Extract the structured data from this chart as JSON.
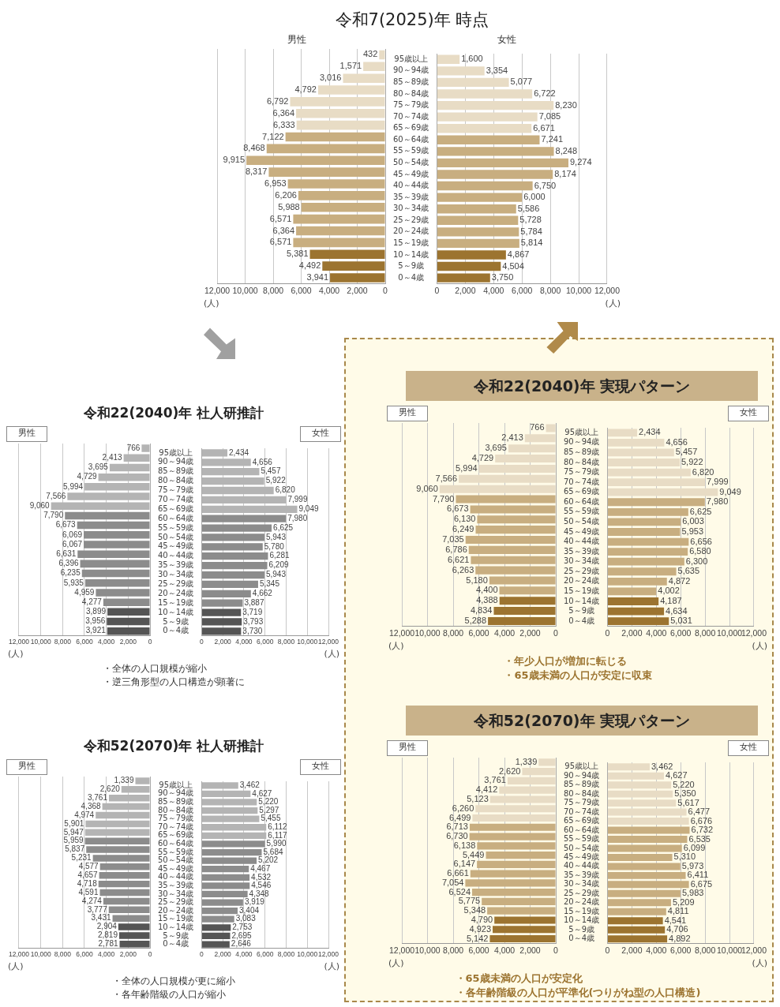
{
  "chart_data": [
    {
      "type": "bar",
      "orientation": "horizontal",
      "title": "令和7(2025)年 時点",
      "subtitle": "男性",
      "xlabel": "(人)",
      "categories": [
        null,
        null,
        null,
        null,
        null,
        null,
        null,
        null,
        null,
        null,
        null,
        null,
        null,
        null,
        null,
        null,
        null,
        null,
        null,
        null
      ],
      "values": [
        432,
        1571,
        3016,
        4792,
        6792,
        6364,
        6333,
        7122,
        8468,
        9915,
        8317,
        6953,
        6206,
        5988,
        6571,
        6364,
        6571,
        5381,
        4492,
        3941
      ],
      "value_labels": [
        "432",
        "1,571",
        "3,016",
        "4,792",
        "6,792",
        "6,364",
        "6,333",
        "7,122",
        "8,468",
        "9,915",
        "8,317",
        "6,953",
        "6,206",
        "5,988",
        "6,571",
        "6,364",
        "6,571",
        "5,381",
        "4,492",
        "3,941"
      ],
      "colors": [
        "#e8dcc5",
        "#e8dcc5",
        "#e8dcc5",
        "#e8dcc5",
        "#e8dcc5",
        "#e8dcc5",
        "#e8dcc5",
        "#c8ae80",
        "#c8ae80",
        "#c8ae80",
        "#c8ae80",
        "#c8ae80",
        "#c8ae80",
        "#c8ae80",
        "#c8ae80",
        "#c8ae80",
        "#c8ae80",
        "#9c7430",
        "#9c7430",
        "#9c7430"
      ],
      "xlim": [
        12000,
        0
      ],
      "xticks": [
        {
          "value": 12000,
          "label": "12,000"
        },
        {
          "value": 10000,
          "label": "10,000"
        },
        {
          "value": 8000,
          "label": "8,000"
        },
        {
          "value": 6000,
          "label": "6,000"
        },
        {
          "value": 4000,
          "label": "4,000"
        },
        {
          "value": 2000,
          "label": "2,000"
        },
        {
          "value": 0,
          "label": "0"
        }
      ],
      "grid": "x",
      "tick_labels": "x"
    },
    {
      "type": "bar",
      "orientation": "horizontal",
      "subtitle": "女性",
      "xlabel": "(人)",
      "categories": [
        "95歳以上",
        "90～94歳",
        "85～89歳",
        "80～84歳",
        "75～79歳",
        "70～74歳",
        "65～69歳",
        "60～64歳",
        "55～59歳",
        "50～54歳",
        "45～49歳",
        "40～44歳",
        "35～39歳",
        "30～34歳",
        "25～29歳",
        "20～24歳",
        "15～19歳",
        "10～14歳",
        "5～9歳",
        "0～4歳"
      ],
      "values": [
        1600,
        3354,
        5077,
        6722,
        8230,
        7085,
        6671,
        7241,
        8248,
        9274,
        8174,
        6750,
        6000,
        5586,
        5728,
        5784,
        5814,
        4867,
        4504,
        3750
      ],
      "value_labels": [
        "1,600",
        "3,354",
        "5,077",
        "6,722",
        "8,230",
        "7,085",
        "6,671",
        "7,241",
        "8,248",
        "9,274",
        "8,174",
        "6,750",
        "6,000",
        "5,586",
        "5,728",
        "5,784",
        "5,814",
        "4,867",
        "4,504",
        "3,750"
      ],
      "colors": [
        "#e8dcc5",
        "#e8dcc5",
        "#e8dcc5",
        "#e8dcc5",
        "#e8dcc5",
        "#e8dcc5",
        "#e8dcc5",
        "#c8ae80",
        "#c8ae80",
        "#c8ae80",
        "#c8ae80",
        "#c8ae80",
        "#c8ae80",
        "#c8ae80",
        "#c8ae80",
        "#c8ae80",
        "#c8ae80",
        "#9c7430",
        "#9c7430",
        "#9c7430"
      ],
      "xlim": [
        0,
        12000
      ],
      "xticks": [
        {
          "value": 0,
          "label": "0"
        },
        {
          "value": 2000,
          "label": "2,000"
        },
        {
          "value": 4000,
          "label": "4,000"
        },
        {
          "value": 6000,
          "label": "6,000"
        },
        {
          "value": 8000,
          "label": "8,000"
        },
        {
          "value": 10000,
          "label": "10,000"
        },
        {
          "value": 12000,
          "label": "12,000"
        }
      ],
      "grid": "x"
    },
    {
      "type": "bar",
      "orientation": "horizontal",
      "title": "令和22(2040)年 社人研推計",
      "subtitle": "男性",
      "xlabel": "(人)",
      "annotations": [
        "・全体の人口規模が縮小",
        "・逆三角形型の人口構造が顕著に"
      ],
      "categories": [
        null,
        null,
        null,
        null,
        null,
        null,
        null,
        null,
        null,
        null,
        null,
        null,
        null,
        null,
        null,
        null,
        null,
        null,
        null,
        null
      ],
      "values": [
        766,
        2413,
        3695,
        4729,
        5994,
        7566,
        9060,
        7790,
        6673,
        6069,
        6067,
        6631,
        6396,
        6235,
        5935,
        4959,
        4277,
        3899,
        3956,
        3921
      ],
      "value_labels": [
        "766",
        "2,413",
        "3,695",
        "4,729",
        "5,994",
        "7,566",
        "9,060",
        "7,790",
        "6,673",
        "6,069",
        "6,067",
        "6,631",
        "6,396",
        "6,235",
        "5,935",
        "4,959",
        "4,277",
        "3,899",
        "3,956",
        "3,921"
      ],
      "colors": [
        "#b4b4b4",
        "#b4b4b4",
        "#b4b4b4",
        "#b4b4b4",
        "#b4b4b4",
        "#b4b4b4",
        "#b4b4b4",
        "#8c8c8c",
        "#8c8c8c",
        "#8c8c8c",
        "#8c8c8c",
        "#8c8c8c",
        "#8c8c8c",
        "#8c8c8c",
        "#8c8c8c",
        "#8c8c8c",
        "#8c8c8c",
        "#555555",
        "#555555",
        "#555555"
      ],
      "xlim": [
        12000,
        0
      ],
      "xticks": [
        {
          "value": 12000,
          "label": "12,000"
        },
        {
          "value": 10000,
          "label": "10,000"
        },
        {
          "value": 8000,
          "label": "8,000"
        },
        {
          "value": 6000,
          "label": "6,000"
        },
        {
          "value": 4000,
          "label": "4,000"
        },
        {
          "value": 2000,
          "label": "2,000"
        },
        {
          "value": 0,
          "label": "0"
        }
      ],
      "grid": "x",
      "tick_labels": "x"
    },
    {
      "type": "bar",
      "orientation": "horizontal",
      "subtitle": "女性",
      "xlabel": "(人)",
      "categories": [
        "95歳以上",
        "90～94歳",
        "85～89歳",
        "80～84歳",
        "75～79歳",
        "70～74歳",
        "65～69歳",
        "60～64歳",
        "55～59歳",
        "50～54歳",
        "45～49歳",
        "40～44歳",
        "35～39歳",
        "30～34歳",
        "25～29歳",
        "20～24歳",
        "15～19歳",
        "10～14歳",
        "5～9歳",
        "0～4歳"
      ],
      "values": [
        2434,
        4656,
        5457,
        5922,
        6820,
        7999,
        9049,
        7980,
        6625,
        5943,
        5780,
        6281,
        6209,
        5943,
        5345,
        4662,
        3887,
        3719,
        3793,
        3730
      ],
      "value_labels": [
        "2,434",
        "4,656",
        "5,457",
        "5,922",
        "6,820",
        "7,999",
        "9,049",
        "7,980",
        "6,625",
        "5,943",
        "5,780",
        "6,281",
        "6,209",
        "5,943",
        "5,345",
        "4,662",
        "3,887",
        "3,719",
        "3,793",
        "3,730"
      ],
      "colors": [
        "#b4b4b4",
        "#b4b4b4",
        "#b4b4b4",
        "#b4b4b4",
        "#b4b4b4",
        "#b4b4b4",
        "#b4b4b4",
        "#8c8c8c",
        "#8c8c8c",
        "#8c8c8c",
        "#8c8c8c",
        "#8c8c8c",
        "#8c8c8c",
        "#8c8c8c",
        "#8c8c8c",
        "#8c8c8c",
        "#8c8c8c",
        "#555555",
        "#555555",
        "#555555"
      ],
      "xlim": [
        0,
        12000
      ],
      "xticks": [
        {
          "value": 0,
          "label": "0"
        },
        {
          "value": 2000,
          "label": "2,000"
        },
        {
          "value": 4000,
          "label": "4,000"
        },
        {
          "value": 6000,
          "label": "6,000"
        },
        {
          "value": 8000,
          "label": "8,000"
        },
        {
          "value": 10000,
          "label": "10,000"
        },
        {
          "value": 12000,
          "label": "12,000"
        }
      ],
      "grid": "x"
    },
    {
      "type": "bar",
      "orientation": "horizontal",
      "title": "令和22(2040)年 実現パターン",
      "subtitle": "男性",
      "xlabel": "(人)",
      "annotations": [
        "・年少人口が増加に転じる",
        "・65歳未満の人口が安定に収束"
      ],
      "categories": [
        null,
        null,
        null,
        null,
        null,
        null,
        null,
        null,
        null,
        null,
        null,
        null,
        null,
        null,
        null,
        null,
        null,
        null,
        null,
        null
      ],
      "values": [
        766,
        2413,
        3695,
        4729,
        5994,
        7566,
        9060,
        7790,
        6673,
        6130,
        6249,
        7035,
        6786,
        6621,
        6263,
        5180,
        4400,
        4388,
        4834,
        5288
      ],
      "value_labels": [
        "766",
        "2,413",
        "3,695",
        "4,729",
        "5,994",
        "7,566",
        "9,060",
        "7,790",
        "6,673",
        "6,130",
        "6,249",
        "7,035",
        "6,786",
        "6,621",
        "6,263",
        "5,180",
        "4,400",
        "4,388",
        "4,834",
        "5,288"
      ],
      "colors": [
        "#e8dcc5",
        "#e8dcc5",
        "#e8dcc5",
        "#e8dcc5",
        "#e8dcc5",
        "#e8dcc5",
        "#e8dcc5",
        "#c8ae80",
        "#c8ae80",
        "#c8ae80",
        "#c8ae80",
        "#c8ae80",
        "#c8ae80",
        "#c8ae80",
        "#c8ae80",
        "#c8ae80",
        "#c8ae80",
        "#9c7430",
        "#9c7430",
        "#9c7430"
      ],
      "xlim": [
        12000,
        0
      ],
      "xticks": [
        {
          "value": 12000,
          "label": "12,000"
        },
        {
          "value": 10000,
          "label": "10,000"
        },
        {
          "value": 8000,
          "label": "8,000"
        },
        {
          "value": 6000,
          "label": "6,000"
        },
        {
          "value": 4000,
          "label": "4,000"
        },
        {
          "value": 2000,
          "label": "2,000"
        },
        {
          "value": 0,
          "label": "0"
        }
      ],
      "grid": "x",
      "tick_labels": "x"
    },
    {
      "type": "bar",
      "orientation": "horizontal",
      "subtitle": "女性",
      "xlabel": "(人)",
      "categories": [
        "95歳以上",
        "90～94歳",
        "85～89歳",
        "80～84歳",
        "75～79歳",
        "70～74歳",
        "65～69歳",
        "60～64歳",
        "55～59歳",
        "50～54歳",
        "45～49歳",
        "40～44歳",
        "35～39歳",
        "30～34歳",
        "25～29歳",
        "20～24歳",
        "15～19歳",
        "10～14歳",
        "5～9歳",
        "0～4歳"
      ],
      "values": [
        2434,
        4656,
        5457,
        5922,
        6820,
        7999,
        9049,
        7980,
        6625,
        6003,
        5953,
        6656,
        6580,
        6300,
        5635,
        4872,
        4002,
        4187,
        4634,
        5031
      ],
      "value_labels": [
        "2,434",
        "4,656",
        "5,457",
        "5,922",
        "6,820",
        "7,999",
        "9,049",
        "7,980",
        "6,625",
        "6,003",
        "5,953",
        "6,656",
        "6,580",
        "6,300",
        "5,635",
        "4,872",
        "4,002",
        "4,187",
        "4,634",
        "5,031"
      ],
      "colors": [
        "#e8dcc5",
        "#e8dcc5",
        "#e8dcc5",
        "#e8dcc5",
        "#e8dcc5",
        "#e8dcc5",
        "#e8dcc5",
        "#c8ae80",
        "#c8ae80",
        "#c8ae80",
        "#c8ae80",
        "#c8ae80",
        "#c8ae80",
        "#c8ae80",
        "#c8ae80",
        "#c8ae80",
        "#c8ae80",
        "#9c7430",
        "#9c7430",
        "#9c7430"
      ],
      "xlim": [
        0,
        12000
      ],
      "xticks": [
        {
          "value": 0,
          "label": "0"
        },
        {
          "value": 2000,
          "label": "2,000"
        },
        {
          "value": 4000,
          "label": "4,000"
        },
        {
          "value": 6000,
          "label": "6,000"
        },
        {
          "value": 8000,
          "label": "8,000"
        },
        {
          "value": 10000,
          "label": "10,000"
        },
        {
          "value": 12000,
          "label": "12,000"
        }
      ],
      "grid": "x"
    },
    {
      "type": "bar",
      "orientation": "horizontal",
      "title": "令和52(2070)年 社人研推計",
      "subtitle": "男性",
      "xlabel": "(人)",
      "annotations": [
        "・全体の人口規模が更に縮小",
        "・各年齢階級の人口が縮小"
      ],
      "categories": [
        null,
        null,
        null,
        null,
        null,
        null,
        null,
        null,
        null,
        null,
        null,
        null,
        null,
        null,
        null,
        null,
        null,
        null,
        null,
        null
      ],
      "values": [
        1339,
        2620,
        3761,
        4368,
        4974,
        5901,
        5947,
        5959,
        5837,
        5231,
        4577,
        4657,
        4718,
        4591,
        4274,
        3777,
        3431,
        2904,
        2819,
        2781
      ],
      "value_labels": [
        "1,339",
        "2,620",
        "3,761",
        "4,368",
        "4,974",
        "5,901",
        "5,947",
        "5,959",
        "5,837",
        "5,231",
        "4,577",
        "4,657",
        "4,718",
        "4,591",
        "4,274",
        "3,777",
        "3,431",
        "2,904",
        "2,819",
        "2,781"
      ],
      "colors": [
        "#b4b4b4",
        "#b4b4b4",
        "#b4b4b4",
        "#b4b4b4",
        "#b4b4b4",
        "#b4b4b4",
        "#b4b4b4",
        "#8c8c8c",
        "#8c8c8c",
        "#8c8c8c",
        "#8c8c8c",
        "#8c8c8c",
        "#8c8c8c",
        "#8c8c8c",
        "#8c8c8c",
        "#8c8c8c",
        "#8c8c8c",
        "#555555",
        "#555555",
        "#555555"
      ],
      "xlim": [
        12000,
        0
      ],
      "xticks": [
        {
          "value": 12000,
          "label": "12,000"
        },
        {
          "value": 10000,
          "label": "10,000"
        },
        {
          "value": 8000,
          "label": "8,000"
        },
        {
          "value": 6000,
          "label": "6,000"
        },
        {
          "value": 4000,
          "label": "4,000"
        },
        {
          "value": 2000,
          "label": "2,000"
        },
        {
          "value": 0,
          "label": "0"
        }
      ],
      "grid": "x",
      "tick_labels": "x"
    },
    {
      "type": "bar",
      "orientation": "horizontal",
      "subtitle": "女性",
      "xlabel": "(人)",
      "categories": [
        "95歳以上",
        "90～94歳",
        "85～89歳",
        "80～84歳",
        "75～79歳",
        "70～74歳",
        "65～69歳",
        "60～64歳",
        "55～59歳",
        "50～54歳",
        "45～49歳",
        "40～44歳",
        "35～39歳",
        "30～34歳",
        "25～29歳",
        "20～24歳",
        "15～19歳",
        "10～14歳",
        "5～9歳",
        "0～4歳"
      ],
      "values": [
        3462,
        4627,
        5220,
        5297,
        5455,
        6112,
        6117,
        5990,
        5684,
        5202,
        4467,
        4532,
        4546,
        4348,
        3919,
        3404,
        3083,
        2753,
        2695,
        2646
      ],
      "value_labels": [
        "3,462",
        "4,627",
        "5,220",
        "5,297",
        "5,455",
        "6,112",
        "6,117",
        "5,990",
        "5,684",
        "5,202",
        "4,467",
        "4,532",
        "4,546",
        "4,348",
        "3,919",
        "3,404",
        "3,083",
        "2,753",
        "2,695",
        "2,646"
      ],
      "colors": [
        "#b4b4b4",
        "#b4b4b4",
        "#b4b4b4",
        "#b4b4b4",
        "#b4b4b4",
        "#b4b4b4",
        "#b4b4b4",
        "#8c8c8c",
        "#8c8c8c",
        "#8c8c8c",
        "#8c8c8c",
        "#8c8c8c",
        "#8c8c8c",
        "#8c8c8c",
        "#8c8c8c",
        "#8c8c8c",
        "#8c8c8c",
        "#555555",
        "#555555",
        "#555555"
      ],
      "xlim": [
        0,
        12000
      ],
      "xticks": [
        {
          "value": 0,
          "label": "0"
        },
        {
          "value": 2000,
          "label": "2,000"
        },
        {
          "value": 4000,
          "label": "4,000"
        },
        {
          "value": 6000,
          "label": "6,000"
        },
        {
          "value": 8000,
          "label": "8,000"
        },
        {
          "value": 10000,
          "label": "10,000"
        },
        {
          "value": 12000,
          "label": "12,000"
        }
      ],
      "grid": "x"
    },
    {
      "type": "bar",
      "orientation": "horizontal",
      "title": "令和52(2070)年 実現パターン",
      "subtitle": "男性",
      "xlabel": "(人)",
      "annotations": [
        "・65歳未満の人口が安定化",
        "・各年齢階級の人口が平準化(つりがね型の人口構造)"
      ],
      "categories": [
        null,
        null,
        null,
        null,
        null,
        null,
        null,
        null,
        null,
        null,
        null,
        null,
        null,
        null,
        null,
        null,
        null,
        null,
        null,
        null
      ],
      "values": [
        1339,
        2620,
        3761,
        4412,
        5123,
        6260,
        6499,
        6713,
        6730,
        6138,
        5449,
        6147,
        6661,
        7054,
        6524,
        5775,
        5348,
        4790,
        4923,
        5142
      ],
      "value_labels": [
        "1,339",
        "2,620",
        "3,761",
        "4,412",
        "5,123",
        "6,260",
        "6,499",
        "6,713",
        "6,730",
        "6,138",
        "5,449",
        "6,147",
        "6,661",
        "7,054",
        "6,524",
        "5,775",
        "5,348",
        "4,790",
        "4,923",
        "5,142"
      ],
      "colors": [
        "#e8dcc5",
        "#e8dcc5",
        "#e8dcc5",
        "#e8dcc5",
        "#e8dcc5",
        "#e8dcc5",
        "#e8dcc5",
        "#c8ae80",
        "#c8ae80",
        "#c8ae80",
        "#c8ae80",
        "#c8ae80",
        "#c8ae80",
        "#c8ae80",
        "#c8ae80",
        "#c8ae80",
        "#c8ae80",
        "#9c7430",
        "#9c7430",
        "#9c7430"
      ],
      "xlim": [
        12000,
        0
      ],
      "xticks": [
        {
          "value": 12000,
          "label": "12,000"
        },
        {
          "value": 10000,
          "label": "10,000"
        },
        {
          "value": 8000,
          "label": "8,000"
        },
        {
          "value": 6000,
          "label": "6,000"
        },
        {
          "value": 4000,
          "label": "4,000"
        },
        {
          "value": 2000,
          "label": "2,000"
        },
        {
          "value": 0,
          "label": "0"
        }
      ],
      "grid": "x",
      "tick_labels": "x"
    },
    {
      "type": "bar",
      "orientation": "horizontal",
      "subtitle": "女性",
      "xlabel": "(人)",
      "categories": [
        "95歳以上",
        "90～94歳",
        "85～89歳",
        "80～84歳",
        "75～79歳",
        "70～74歳",
        "65～69歳",
        "60～64歳",
        "55～59歳",
        "50～54歳",
        "45～49歳",
        "40～44歳",
        "35～39歳",
        "30～34歳",
        "25～29歳",
        "20～24歳",
        "15～19歳",
        "10～14歳",
        "5～9歳",
        "0～4歳"
      ],
      "values": [
        3462,
        4627,
        5220,
        5350,
        5617,
        6477,
        6676,
        6732,
        6535,
        6099,
        5310,
        5973,
        6411,
        6675,
        5983,
        5209,
        4811,
        4541,
        4706,
        4892
      ],
      "value_labels": [
        "3,462",
        "4,627",
        "5,220",
        "5,350",
        "5,617",
        "6,477",
        "6,676",
        "6,732",
        "6,535",
        "6,099",
        "5,310",
        "5,973",
        "6,411",
        "6,675",
        "5,983",
        "5,209",
        "4,811",
        "4,541",
        "4,706",
        "4,892"
      ],
      "colors": [
        "#e8dcc5",
        "#e8dcc5",
        "#e8dcc5",
        "#e8dcc5",
        "#e8dcc5",
        "#e8dcc5",
        "#e8dcc5",
        "#c8ae80",
        "#c8ae80",
        "#c8ae80",
        "#c8ae80",
        "#c8ae80",
        "#c8ae80",
        "#c8ae80",
        "#c8ae80",
        "#c8ae80",
        "#c8ae80",
        "#9c7430",
        "#9c7430",
        "#9c7430"
      ],
      "xlim": [
        0,
        12000
      ],
      "xticks": [
        {
          "value": 0,
          "label": "0"
        },
        {
          "value": 2000,
          "label": "2,000"
        },
        {
          "value": 4000,
          "label": "4,000"
        },
        {
          "value": 6000,
          "label": "6,000"
        },
        {
          "value": 8000,
          "label": "8,000"
        },
        {
          "value": 10000,
          "label": "10,000"
        },
        {
          "value": 12000,
          "label": "12,000"
        }
      ],
      "grid": "x"
    }
  ]
}
